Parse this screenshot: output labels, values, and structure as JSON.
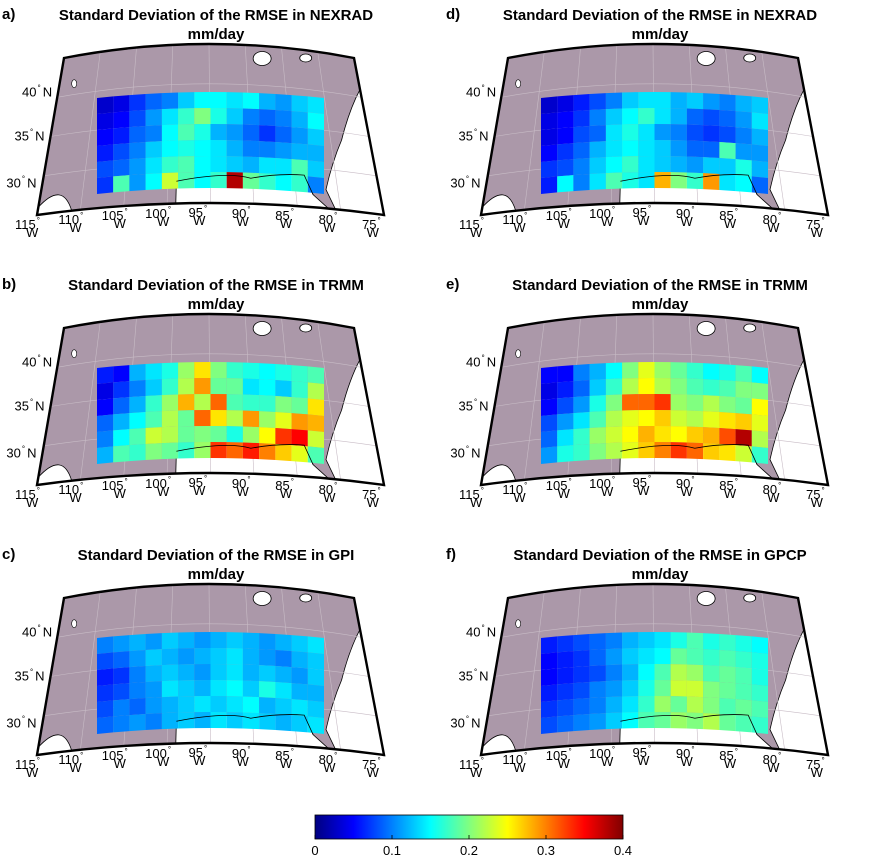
{
  "chart_data": [
    {
      "type": "heatmap",
      "panel_label": "a)",
      "title": "Standard Deviation of the RMSE in NEXRAD",
      "subtitle": "mm/day",
      "xtick_labels": [
        "115",
        "110",
        "105",
        "100",
        "95",
        "90",
        "85",
        "80",
        "75"
      ],
      "ytick_labels": [
        "40",
        "35",
        "30"
      ],
      "lon_hemisphere": "W",
      "lat_hemisphere": "N",
      "grid_rows": 6,
      "grid_cols": 14,
      "values": [
        [
          0.03,
          0.04,
          0.07,
          0.09,
          0.1,
          0.13,
          0.15,
          0.15,
          0.14,
          0.15,
          0.12,
          0.11,
          0.13,
          0.14
        ],
        [
          0.04,
          0.05,
          0.08,
          0.11,
          0.14,
          0.17,
          0.2,
          0.16,
          0.13,
          0.1,
          0.09,
          0.1,
          0.12,
          0.15
        ],
        [
          0.05,
          0.06,
          0.09,
          0.1,
          0.15,
          0.18,
          0.16,
          0.12,
          0.11,
          0.09,
          0.07,
          0.09,
          0.11,
          0.13
        ],
        [
          0.06,
          0.08,
          0.1,
          0.13,
          0.15,
          0.16,
          0.15,
          0.14,
          0.12,
          0.1,
          0.1,
          0.11,
          0.12,
          0.12
        ],
        [
          0.08,
          0.09,
          0.11,
          0.14,
          0.17,
          0.18,
          0.15,
          0.14,
          0.13,
          0.12,
          0.14,
          0.14,
          0.18,
          0.13
        ],
        [
          0.07,
          0.18,
          0.11,
          0.15,
          0.23,
          0.18,
          0.15,
          0.17,
          0.38,
          0.19,
          0.17,
          0.15,
          0.17,
          0.1
        ]
      ]
    },
    {
      "type": "heatmap",
      "panel_label": "b)",
      "title": "Standard Deviation of the RMSE in TRMM",
      "subtitle": "mm/day",
      "xtick_labels": [
        "115",
        "110",
        "105",
        "100",
        "95",
        "90",
        "85",
        "80",
        "75"
      ],
      "ytick_labels": [
        "40",
        "35",
        "30"
      ],
      "lon_hemisphere": "W",
      "lat_hemisphere": "N",
      "grid_rows": 6,
      "grid_cols": 14,
      "values": [
        [
          0.06,
          0.05,
          0.12,
          0.14,
          0.16,
          0.21,
          0.26,
          0.2,
          0.17,
          0.16,
          0.15,
          0.16,
          0.17,
          0.18
        ],
        [
          0.04,
          0.07,
          0.1,
          0.13,
          0.17,
          0.22,
          0.29,
          0.19,
          0.19,
          0.14,
          0.15,
          0.13,
          0.17,
          0.22
        ],
        [
          0.05,
          0.09,
          0.12,
          0.17,
          0.21,
          0.28,
          0.22,
          0.31,
          0.18,
          0.17,
          0.17,
          0.2,
          0.19,
          0.26
        ],
        [
          0.09,
          0.12,
          0.15,
          0.18,
          0.22,
          0.19,
          0.31,
          0.26,
          0.22,
          0.29,
          0.21,
          0.24,
          0.29,
          0.28
        ],
        [
          0.1,
          0.15,
          0.18,
          0.23,
          0.22,
          0.19,
          0.2,
          0.19,
          0.16,
          0.21,
          0.25,
          0.33,
          0.35,
          0.23
        ],
        [
          0.12,
          0.18,
          0.17,
          0.2,
          0.19,
          0.17,
          0.21,
          0.33,
          0.31,
          0.34,
          0.3,
          0.27,
          0.24,
          0.18
        ]
      ]
    },
    {
      "type": "heatmap",
      "panel_label": "c)",
      "title": "Standard Deviation of the RMSE in GPI",
      "subtitle": "mm/day",
      "xtick_labels": [
        "115",
        "110",
        "105",
        "100",
        "95",
        "90",
        "85",
        "80",
        "75"
      ],
      "ytick_labels": [
        "40",
        "35",
        "30"
      ],
      "lon_hemisphere": "W",
      "lat_hemisphere": "N",
      "grid_rows": 6,
      "grid_cols": 14,
      "values": [
        [
          0.1,
          0.11,
          0.12,
          0.11,
          0.13,
          0.12,
          0.11,
          0.12,
          0.13,
          0.12,
          0.11,
          0.12,
          0.13,
          0.14
        ],
        [
          0.08,
          0.09,
          0.11,
          0.13,
          0.12,
          0.11,
          0.12,
          0.13,
          0.14,
          0.12,
          0.11,
          0.1,
          0.12,
          0.13
        ],
        [
          0.06,
          0.07,
          0.1,
          0.12,
          0.13,
          0.12,
          0.11,
          0.13,
          0.14,
          0.12,
          0.13,
          0.12,
          0.11,
          0.13
        ],
        [
          0.07,
          0.08,
          0.1,
          0.11,
          0.14,
          0.13,
          0.12,
          0.14,
          0.15,
          0.13,
          0.16,
          0.14,
          0.12,
          0.12
        ],
        [
          0.08,
          0.1,
          0.09,
          0.11,
          0.12,
          0.13,
          0.14,
          0.13,
          0.14,
          0.15,
          0.12,
          0.13,
          0.14,
          0.13
        ],
        [
          0.09,
          0.1,
          0.11,
          0.1,
          0.12,
          0.13,
          0.12,
          0.14,
          0.13,
          0.14,
          0.13,
          0.12,
          0.13,
          0.14
        ]
      ]
    },
    {
      "type": "heatmap",
      "panel_label": "d)",
      "title": "Standard Deviation of the RMSE in NEXRAD",
      "subtitle": "mm/day",
      "xtick_labels": [
        "115",
        "110",
        "105",
        "100",
        "95",
        "90",
        "85",
        "80",
        "75"
      ],
      "ytick_labels": [
        "40",
        "35",
        "30"
      ],
      "lon_hemisphere": "W",
      "lat_hemisphere": "N",
      "grid_rows": 6,
      "grid_cols": 14,
      "values": [
        [
          0.03,
          0.04,
          0.06,
          0.08,
          0.1,
          0.13,
          0.14,
          0.14,
          0.12,
          0.13,
          0.11,
          0.1,
          0.12,
          0.13
        ],
        [
          0.04,
          0.05,
          0.07,
          0.1,
          0.13,
          0.15,
          0.17,
          0.14,
          0.12,
          0.09,
          0.08,
          0.09,
          0.11,
          0.14
        ],
        [
          0.04,
          0.05,
          0.08,
          0.09,
          0.14,
          0.16,
          0.14,
          0.11,
          0.1,
          0.08,
          0.07,
          0.08,
          0.1,
          0.12
        ],
        [
          0.05,
          0.07,
          0.09,
          0.12,
          0.14,
          0.15,
          0.14,
          0.13,
          0.11,
          0.09,
          0.09,
          0.18,
          0.11,
          0.11
        ],
        [
          0.07,
          0.08,
          0.1,
          0.13,
          0.15,
          0.17,
          0.14,
          0.13,
          0.12,
          0.11,
          0.13,
          0.13,
          0.16,
          0.12
        ],
        [
          0.06,
          0.15,
          0.1,
          0.14,
          0.18,
          0.16,
          0.14,
          0.28,
          0.2,
          0.17,
          0.29,
          0.14,
          0.15,
          0.09
        ]
      ]
    },
    {
      "type": "heatmap",
      "panel_label": "e)",
      "title": "Standard Deviation of the RMSE in TRMM",
      "subtitle": "mm/day",
      "xtick_labels": [
        "115",
        "110",
        "105",
        "100",
        "95",
        "90",
        "85",
        "80",
        "75"
      ],
      "ytick_labels": [
        "40",
        "35",
        "30"
      ],
      "lon_hemisphere": "W",
      "lat_hemisphere": "N",
      "grid_rows": 6,
      "grid_cols": 14,
      "values": [
        [
          0.05,
          0.05,
          0.1,
          0.12,
          0.15,
          0.2,
          0.24,
          0.21,
          0.19,
          0.17,
          0.15,
          0.16,
          0.18,
          0.15
        ],
        [
          0.04,
          0.06,
          0.09,
          0.13,
          0.17,
          0.22,
          0.25,
          0.22,
          0.2,
          0.18,
          0.17,
          0.18,
          0.2,
          0.2
        ],
        [
          0.05,
          0.08,
          0.11,
          0.16,
          0.2,
          0.31,
          0.31,
          0.33,
          0.21,
          0.2,
          0.22,
          0.2,
          0.19,
          0.25
        ],
        [
          0.08,
          0.11,
          0.14,
          0.18,
          0.22,
          0.24,
          0.25,
          0.27,
          0.23,
          0.22,
          0.24,
          0.26,
          0.27,
          0.24
        ],
        [
          0.09,
          0.14,
          0.17,
          0.21,
          0.23,
          0.25,
          0.28,
          0.26,
          0.25,
          0.27,
          0.28,
          0.32,
          0.38,
          0.22
        ],
        [
          0.11,
          0.16,
          0.17,
          0.2,
          0.22,
          0.24,
          0.27,
          0.3,
          0.33,
          0.31,
          0.27,
          0.26,
          0.23,
          0.17
        ]
      ]
    },
    {
      "type": "heatmap",
      "panel_label": "f)",
      "title": "Standard Deviation of the RMSE in GPCP",
      "subtitle": "mm/day",
      "xtick_labels": [
        "115",
        "110",
        "105",
        "100",
        "95",
        "90",
        "85",
        "80",
        "75"
      ],
      "ytick_labels": [
        "40",
        "35",
        "30"
      ],
      "lon_hemisphere": "W",
      "lat_hemisphere": "N",
      "grid_rows": 6,
      "grid_cols": 14,
      "values": [
        [
          0.06,
          0.07,
          0.08,
          0.09,
          0.1,
          0.12,
          0.13,
          0.14,
          0.16,
          0.18,
          0.16,
          0.17,
          0.16,
          0.15
        ],
        [
          0.05,
          0.06,
          0.07,
          0.09,
          0.11,
          0.13,
          0.14,
          0.15,
          0.19,
          0.18,
          0.17,
          0.18,
          0.17,
          0.16
        ],
        [
          0.05,
          0.06,
          0.07,
          0.08,
          0.1,
          0.12,
          0.15,
          0.18,
          0.22,
          0.21,
          0.18,
          0.19,
          0.18,
          0.16
        ],
        [
          0.06,
          0.07,
          0.08,
          0.1,
          0.11,
          0.13,
          0.16,
          0.19,
          0.23,
          0.23,
          0.2,
          0.19,
          0.18,
          0.17
        ],
        [
          0.07,
          0.08,
          0.09,
          0.1,
          0.12,
          0.14,
          0.17,
          0.21,
          0.19,
          0.22,
          0.2,
          0.18,
          0.19,
          0.18
        ],
        [
          0.08,
          0.09,
          0.1,
          0.11,
          0.13,
          0.15,
          0.18,
          0.19,
          0.21,
          0.2,
          0.22,
          0.19,
          0.18,
          0.17
        ]
      ]
    }
  ],
  "colorbar": {
    "colormap": "jet",
    "vmin": 0,
    "vmax": 0.4,
    "tick_values": [
      0,
      0.1,
      0.2,
      0.3,
      0.4
    ],
    "tick_labels": [
      "0",
      "0.1",
      "0.2",
      "0.3",
      "0.4"
    ]
  },
  "colors": {
    "land": "#ab98a9",
    "ocean": "#ffffff",
    "border": "#000000"
  }
}
